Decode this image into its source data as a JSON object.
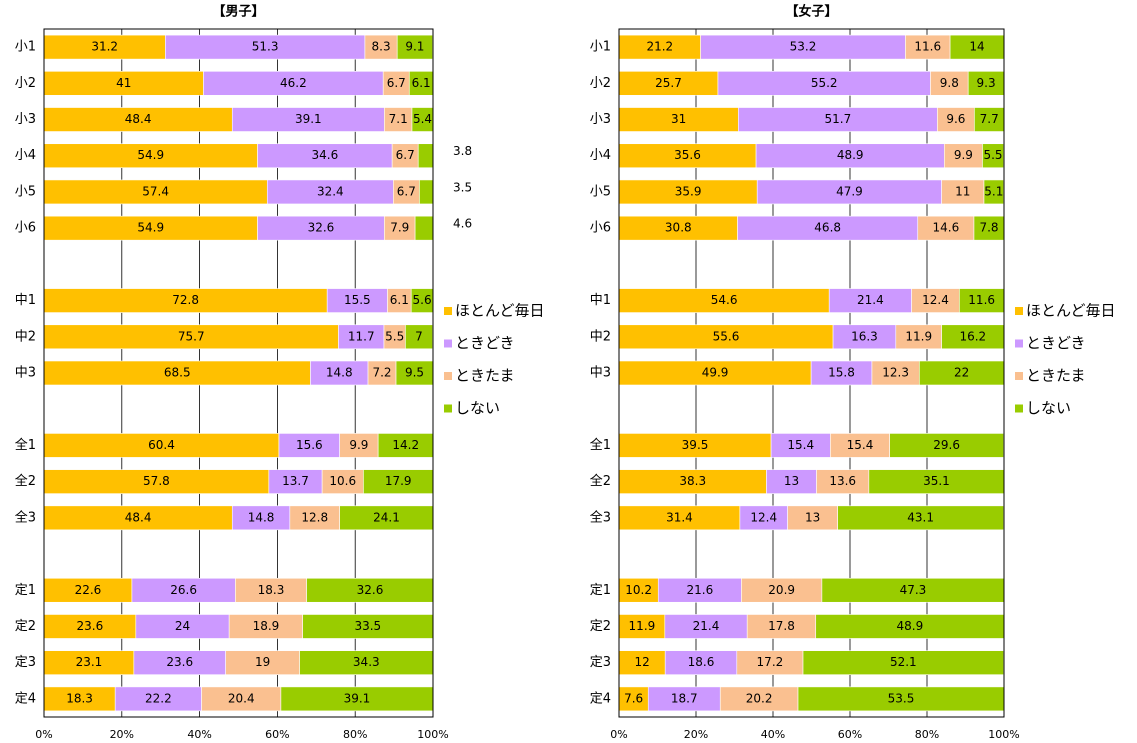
{
  "chart_data": [
    {
      "type": "stacked_barh",
      "title": "【男子】",
      "categories": [
        "小1",
        "小2",
        "小3",
        "小4",
        "小5",
        "小6",
        null,
        "中1",
        "中2",
        "中3",
        null,
        "全1",
        "全2",
        "全3",
        null,
        "定1",
        "定2",
        "定3",
        "定4"
      ],
      "series": [
        {
          "name": "ほとんど毎日",
          "color": "#ffc000",
          "values": [
            31.2,
            41.0,
            48.4,
            54.9,
            57.4,
            54.9,
            null,
            72.8,
            75.7,
            68.5,
            null,
            60.4,
            57.8,
            48.4,
            null,
            22.6,
            23.6,
            23.1,
            18.3
          ]
        },
        {
          "name": "ときどき",
          "color": "#cc99ff",
          "values": [
            51.3,
            46.2,
            39.1,
            34.6,
            32.4,
            32.6,
            null,
            15.5,
            11.7,
            14.8,
            null,
            15.6,
            13.7,
            14.8,
            null,
            26.6,
            24.0,
            23.6,
            22.2
          ]
        },
        {
          "name": "ときたま",
          "color": "#fac090",
          "values": [
            8.3,
            6.7,
            7.1,
            6.7,
            6.7,
            7.9,
            null,
            6.1,
            5.5,
            7.2,
            null,
            9.9,
            10.6,
            12.8,
            null,
            18.3,
            18.9,
            19.0,
            20.4
          ]
        },
        {
          "name": "しない",
          "color": "#99cc00",
          "values": [
            9.1,
            6.1,
            5.4,
            3.8,
            3.5,
            4.6,
            null,
            5.6,
            7.0,
            9.5,
            null,
            14.2,
            17.9,
            24.1,
            null,
            32.6,
            33.5,
            34.3,
            39.1
          ]
        }
      ],
      "xlim": [
        0,
        100
      ],
      "xticks": [
        {
          "value": 0,
          "label": "0%"
        },
        {
          "value": 20,
          "label": "20%"
        },
        {
          "value": 40,
          "label": "40%"
        },
        {
          "value": 60,
          "label": "60%"
        },
        {
          "value": 80,
          "label": "80%"
        },
        {
          "value": 100,
          "label": "100%"
        }
      ],
      "grid": true,
      "legend": "right"
    },
    {
      "type": "stacked_barh",
      "title": "【女子】",
      "categories": [
        "小1",
        "小2",
        "小3",
        "小4",
        "小5",
        "小6",
        null,
        "中1",
        "中2",
        "中3",
        null,
        "全1",
        "全2",
        "全3",
        null,
        "定1",
        "定2",
        "定3",
        "定4"
      ],
      "series": [
        {
          "name": "ほとんど毎日",
          "color": "#ffc000",
          "values": [
            21.2,
            25.7,
            31.0,
            35.6,
            35.9,
            30.8,
            null,
            54.6,
            55.6,
            49.9,
            null,
            39.5,
            38.3,
            31.4,
            null,
            10.2,
            11.9,
            12.0,
            7.6
          ]
        },
        {
          "name": "ときどき",
          "color": "#cc99ff",
          "values": [
            53.2,
            55.2,
            51.7,
            48.9,
            47.9,
            46.8,
            null,
            21.4,
            16.3,
            15.8,
            null,
            15.4,
            13.0,
            12.4,
            null,
            21.6,
            21.4,
            18.6,
            18.7
          ]
        },
        {
          "name": "ときたま",
          "color": "#fac090",
          "values": [
            11.6,
            9.8,
            9.6,
            9.9,
            11.0,
            14.6,
            null,
            12.4,
            11.9,
            12.3,
            null,
            15.4,
            13.6,
            13.0,
            null,
            20.9,
            17.8,
            17.2,
            20.2
          ]
        },
        {
          "name": "しない",
          "color": "#99cc00",
          "values": [
            14.0,
            9.3,
            7.7,
            5.5,
            5.1,
            7.8,
            null,
            11.6,
            16.2,
            22.0,
            null,
            29.6,
            35.1,
            43.1,
            null,
            47.3,
            48.9,
            52.1,
            53.5
          ]
        }
      ],
      "xlim": [
        0,
        100
      ],
      "xticks": [
        {
          "value": 0,
          "label": "0%"
        },
        {
          "value": 20,
          "label": "20%"
        },
        {
          "value": 40,
          "label": "40%"
        },
        {
          "value": 60,
          "label": "60%"
        },
        {
          "value": 80,
          "label": "80%"
        },
        {
          "value": 100,
          "label": "100%"
        }
      ],
      "grid": true,
      "legend": "right"
    }
  ]
}
